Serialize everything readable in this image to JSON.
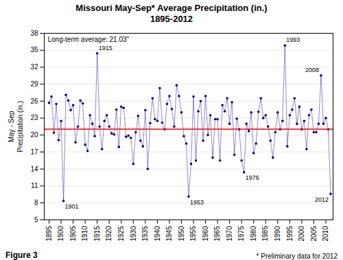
{
  "chart_data": {
    "type": "line",
    "title": "Missouri May-Sep* Average Precipitation (in.)",
    "subtitle": "1895-2012",
    "y_label": "May - Sep\nPrecipitation (in.)",
    "caption": "Figure 3",
    "note": "* Preliminary data for 2012",
    "color": "#00008B",
    "marker": "circle",
    "grid": true,
    "reference_line": {
      "y": 21.03,
      "label": "Long-term average: 21.03\"",
      "color": "#FF0000"
    },
    "annotations": [
      {
        "x": 1901,
        "y": 8.35,
        "label": "1901"
      },
      {
        "x": 1915,
        "y": 34.46,
        "label": "1915"
      },
      {
        "x": 1953,
        "y": 9.11,
        "label": "1953"
      },
      {
        "x": 1976,
        "y": 13.42,
        "label": "1976"
      },
      {
        "x": 1993,
        "y": 35.84,
        "label": "1993"
      },
      {
        "x": 2008,
        "y": 30.54,
        "label": "2008"
      },
      {
        "x": 2012,
        "y": 9.59,
        "label": "2012"
      }
    ],
    "xlim": [
      1893,
      2013
    ],
    "xticks": [
      1895,
      1900,
      1905,
      1910,
      1915,
      1920,
      1925,
      1930,
      1935,
      1940,
      1945,
      1950,
      1955,
      1960,
      1965,
      1970,
      1975,
      1980,
      1985,
      1990,
      1995,
      2000,
      2005,
      2010
    ],
    "ylim": [
      5.0,
      38.0
    ],
    "yticks": [
      5.0,
      8.0,
      11.0,
      14.0,
      17.0,
      20.0,
      23.0,
      26.0,
      29.0,
      32.0,
      35.0,
      38.0
    ],
    "x": [
      1895,
      1896,
      1897,
      1898,
      1899,
      1900,
      1901,
      1902,
      1903,
      1904,
      1905,
      1906,
      1907,
      1908,
      1909,
      1910,
      1911,
      1912,
      1913,
      1914,
      1915,
      1916,
      1917,
      1918,
      1919,
      1920,
      1921,
      1922,
      1923,
      1924,
      1925,
      1926,
      1927,
      1928,
      1929,
      1930,
      1931,
      1932,
      1933,
      1934,
      1935,
      1936,
      1937,
      1938,
      1939,
      1940,
      1941,
      1942,
      1943,
      1944,
      1945,
      1946,
      1947,
      1948,
      1949,
      1950,
      1951,
      1952,
      1953,
      1954,
      1955,
      1956,
      1957,
      1958,
      1959,
      1960,
      1961,
      1962,
      1963,
      1964,
      1965,
      1966,
      1967,
      1968,
      1969,
      1970,
      1971,
      1972,
      1973,
      1974,
      1975,
      1976,
      1977,
      1978,
      1979,
      1980,
      1981,
      1982,
      1983,
      1984,
      1985,
      1986,
      1987,
      1988,
      1989,
      1990,
      1991,
      1992,
      1993,
      1994,
      1995,
      1996,
      1997,
      1998,
      1999,
      2000,
      2001,
      2002,
      2003,
      2004,
      2005,
      2006,
      2007,
      2008,
      2009,
      2010,
      2011,
      2012
    ],
    "values": [
      25.7,
      26.8,
      20.4,
      25.5,
      19.1,
      22.5,
      8.35,
      27.1,
      26.1,
      24.4,
      25.3,
      18.7,
      21.5,
      26.1,
      25.6,
      18.3,
      17.2,
      23.5,
      22.0,
      19.8,
      34.46,
      21.5,
      17.5,
      22.5,
      23.5,
      21.5,
      20.3,
      20.1,
      24.5,
      17.9,
      25.0,
      24.8,
      19.7,
      19.9,
      19.5,
      14.9,
      20.5,
      23.4,
      19.0,
      18.0,
      24.4,
      14.0,
      22.1,
      26.5,
      22.8,
      22.5,
      28.3,
      22.2,
      21.0,
      25.5,
      26.9,
      24.6,
      21.5,
      28.8,
      26.9,
      24.0,
      19.8,
      18.5,
      9.11,
      14.9,
      26.8,
      15.5,
      24.2,
      26.0,
      19.0,
      26.9,
      20.0,
      23.5,
      16.0,
      22.8,
      22.8,
      15.5,
      25.3,
      24.2,
      26.5,
      22.0,
      25.8,
      16.5,
      22.9,
      21.0,
      15.5,
      13.42,
      22.0,
      20.7,
      24.0,
      16.8,
      18.5,
      24.1,
      26.5,
      23.0,
      23.5,
      21.5,
      19.0,
      16.0,
      20.5,
      24.0,
      21.0,
      22.5,
      35.84,
      18.0,
      23.5,
      24.5,
      26.5,
      22.0,
      25.0,
      21.0,
      22.5,
      17.5,
      23.5,
      24.5,
      20.5,
      20.5,
      22.0,
      30.54,
      22.0,
      23.0,
      21.0,
      9.59
    ]
  }
}
